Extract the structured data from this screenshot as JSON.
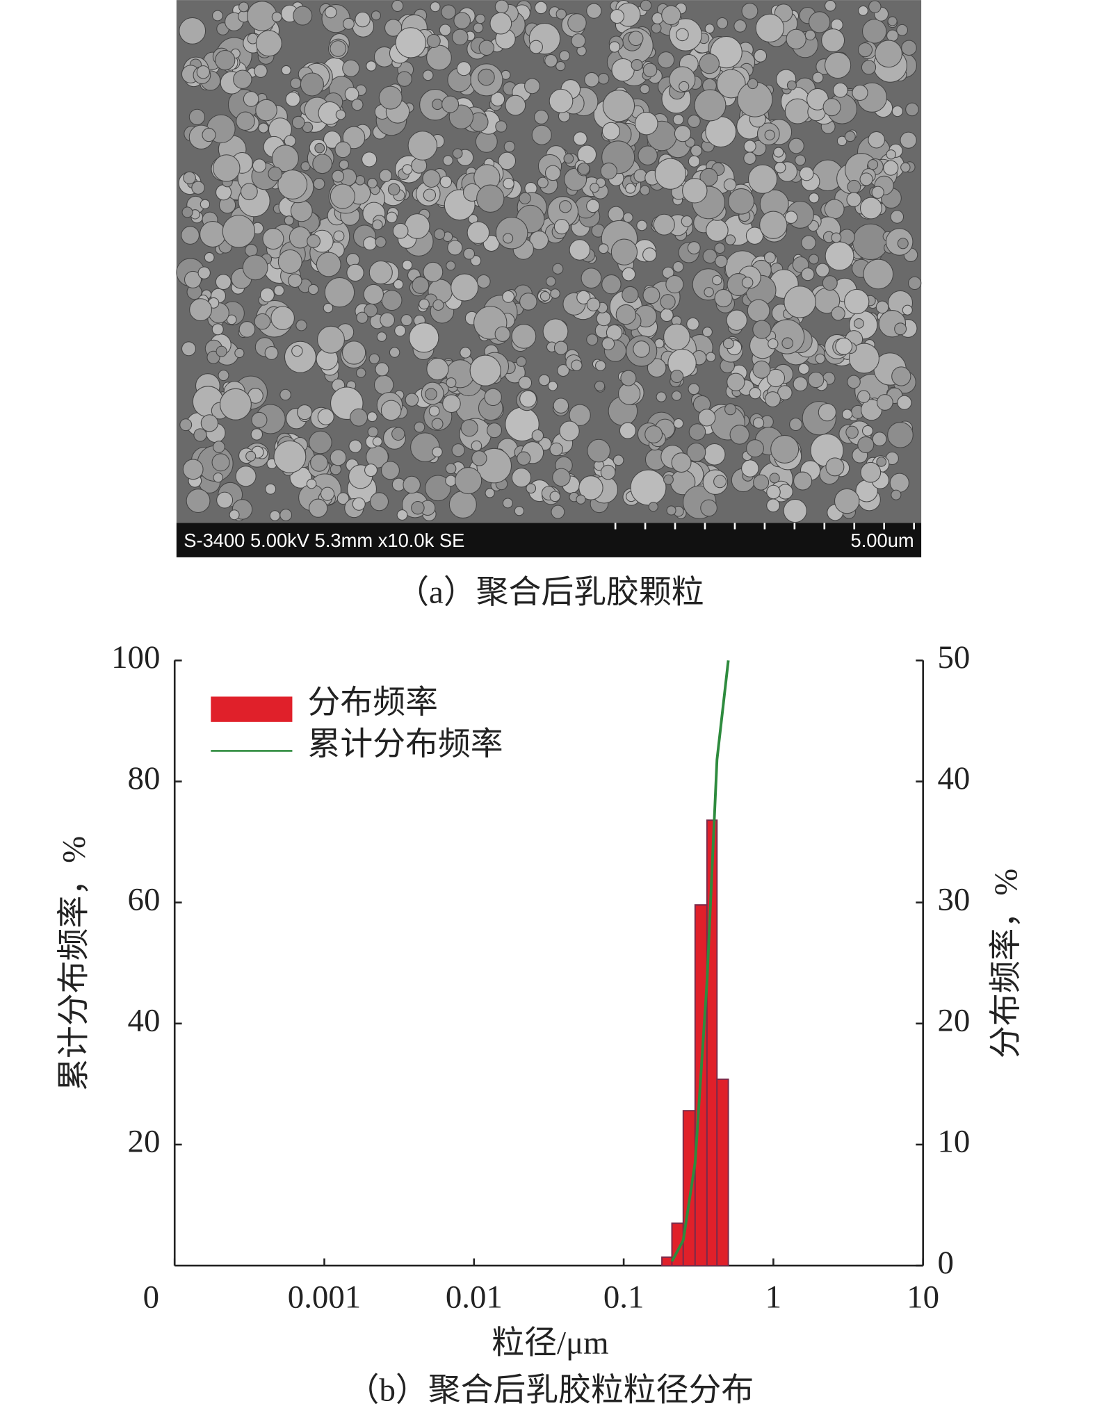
{
  "image": {
    "info_bar": "S-3400 5.00kV 5.3mm x10.0k SE",
    "scale_label": "5.00um",
    "caption": "（a）聚合后乳胶颗粒"
  },
  "chart_data": {
    "type": "histogram",
    "caption": "（b）聚合后乳胶粒粒径分布",
    "x_label": "粒径/μm",
    "y_label": "累计分布频率，%",
    "y2_label": "分布频率，%",
    "x_scale": "log",
    "legend": "upper left",
    "xlim": [
      0.0001,
      10
    ],
    "xticks": [
      {
        "value": 0.0001,
        "label": "0"
      },
      0.001,
      0.01,
      0.1,
      1,
      10
    ],
    "ylim": [
      0,
      100
    ],
    "yticks": [
      20,
      40,
      60,
      80,
      100
    ],
    "y2lim": [
      0,
      50
    ],
    "y2ticks": [
      0,
      10,
      20,
      30,
      40,
      50
    ],
    "bins": [
      0.18,
      0.21,
      0.25,
      0.3,
      0.36,
      0.42,
      0.5
    ],
    "series": [
      {
        "name": "分布频率",
        "color": "#e0202a",
        "axis": "y2",
        "values": [
          0.7,
          3.5,
          12.8,
          29.8,
          36.8,
          15.4
        ]
      },
      {
        "name": "累计分布频率",
        "color": "#2e8b3e",
        "x": [
          0.21,
          0.25,
          0.3,
          0.36,
          0.42,
          0.5
        ],
        "values": [
          0.7,
          4.2,
          17.0,
          46.8,
          83.6,
          100
        ]
      }
    ]
  }
}
